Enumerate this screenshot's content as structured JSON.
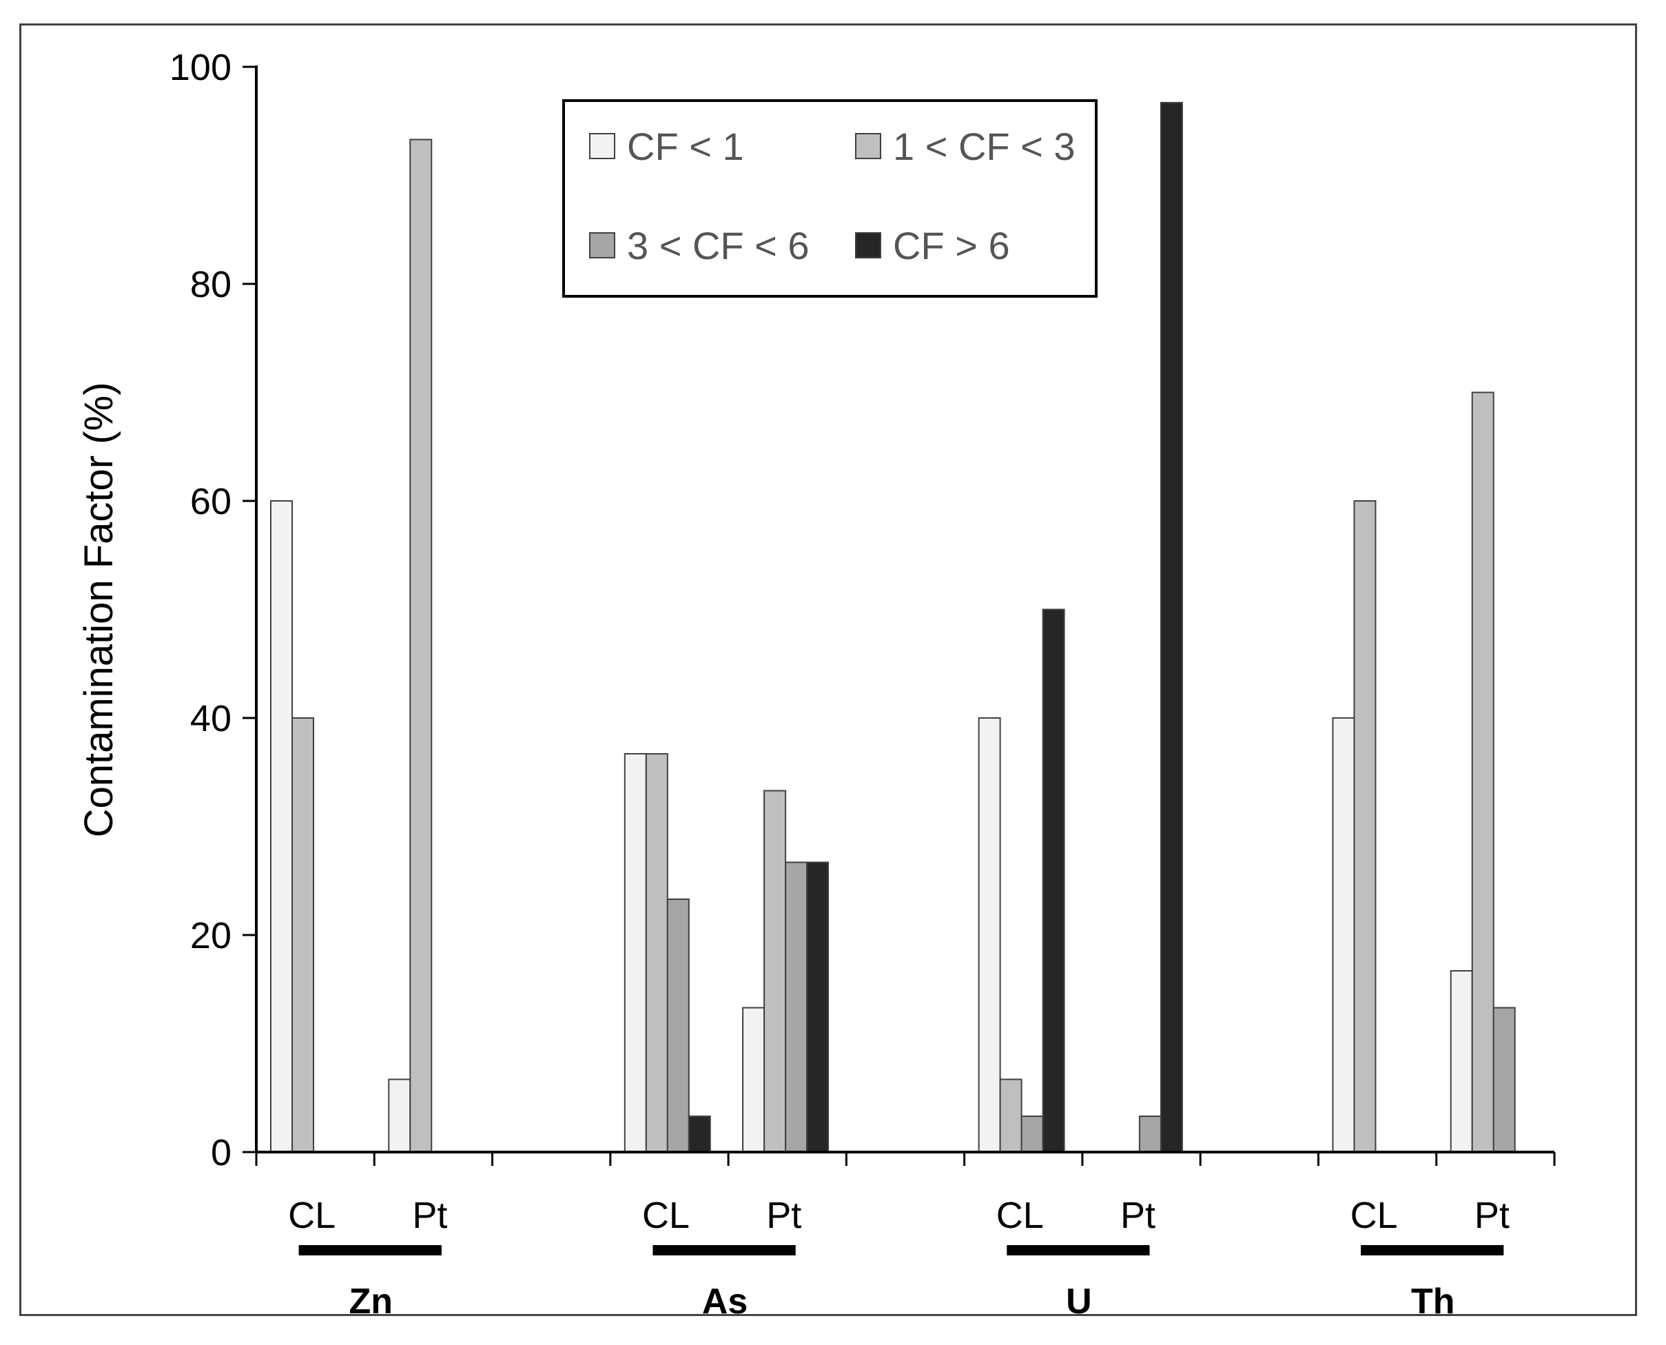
{
  "chart_data": {
    "type": "bar",
    "ylabel": "Contamination Factor (%)",
    "xlabel": "",
    "ylim": [
      0,
      100
    ],
    "yticks": [
      0,
      20,
      40,
      60,
      80,
      100
    ],
    "grid": false,
    "legend_position": "top-center",
    "groups": [
      {
        "name": "Zn",
        "categories": [
          "CL",
          "Pt"
        ]
      },
      {
        "name": "As",
        "categories": [
          "CL",
          "Pt"
        ]
      },
      {
        "name": "U",
        "categories": [
          "CL",
          "Pt"
        ]
      },
      {
        "name": "Th",
        "categories": [
          "CL",
          "Pt"
        ]
      }
    ],
    "categories": [
      "Zn CL",
      "Zn Pt",
      "As CL",
      "As Pt",
      "U CL",
      "U Pt",
      "Th CL",
      "Th Pt"
    ],
    "series": [
      {
        "name": "CF < 1",
        "color": "#f2f2f2",
        "values": [
          60,
          6.7,
          36.7,
          13.3,
          40,
          0,
          40,
          16.7
        ]
      },
      {
        "name": "1 < CF < 3",
        "color": "#bfbfbf",
        "values": [
          40,
          93.3,
          36.7,
          33.3,
          6.7,
          0,
          60,
          70
        ]
      },
      {
        "name": "3 < CF < 6",
        "color": "#a6a6a6",
        "values": [
          0,
          0,
          23.3,
          26.7,
          3.3,
          3.3,
          0,
          13.3
        ]
      },
      {
        "name": "CF > 6",
        "color": "#262626",
        "values": [
          0,
          0,
          3.3,
          26.7,
          50,
          96.7,
          0,
          0
        ]
      }
    ]
  }
}
